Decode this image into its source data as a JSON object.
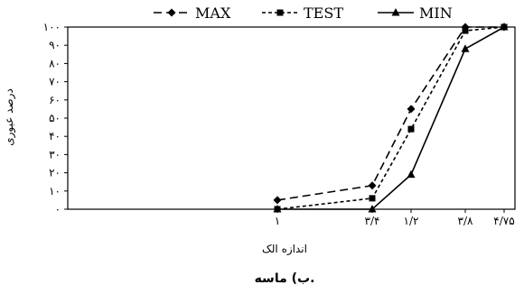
{
  "chart_data": {
    "type": "line",
    "categories": [
      "۱",
      "۳/۴",
      "۱/۲",
      "۳/۸",
      "۴/۷۵"
    ],
    "series": [
      {
        "name": "MAX",
        "values": [
          5,
          13,
          55,
          100,
          100
        ],
        "dash": "9,5",
        "marker": "diamond"
      },
      {
        "name": "TEST",
        "values": [
          0,
          6,
          44,
          98,
          100
        ],
        "dash": "4,3",
        "marker": "square"
      },
      {
        "name": "MIN",
        "values": [
          0,
          0,
          19,
          88,
          100
        ],
        "dash": "",
        "marker": "triangle"
      }
    ],
    "y_ticks": [
      "۰",
      "۱۰",
      "۲۰",
      "۳۰",
      "۴۰",
      "۵۰",
      "۶۰",
      "۷۰",
      "۸۰",
      "۹۰",
      "۱۰۰"
    ],
    "ylim": [
      0,
      100
    ],
    "xlabel": "اندازه الک",
    "ylabel": "درصد عبوری",
    "caption": "ب) ماسه.",
    "legend_position": "top",
    "grid": false
  }
}
